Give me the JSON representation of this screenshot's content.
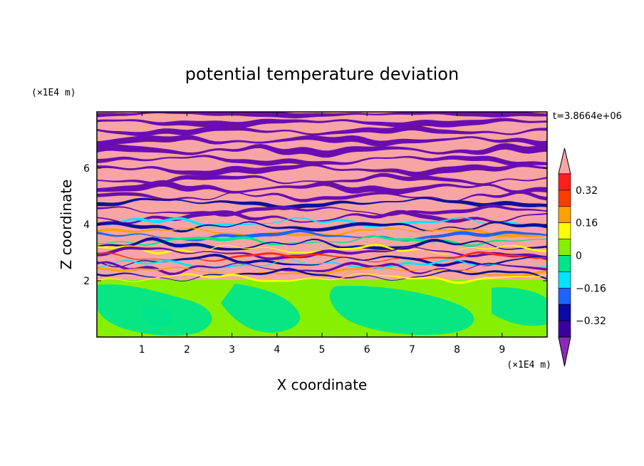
{
  "chart_data": {
    "type": "heatmap",
    "title": "potential temperature deviation",
    "xlabel": "X coordinate",
    "ylabel": "Z coordinate",
    "x_unit": "(×1E4 m)",
    "y_unit": "(×1E4 m)",
    "time_label": "t=3.8664e+06",
    "xlim": [
      0,
      10
    ],
    "ylim": [
      0,
      8
    ],
    "x_ticks": [
      1,
      2,
      3,
      4,
      5,
      6,
      7,
      8,
      9
    ],
    "y_ticks": [
      2,
      4,
      6
    ],
    "grid": false,
    "colorbar": {
      "placement": "right",
      "levels": [
        -0.4,
        -0.32,
        -0.24,
        -0.16,
        -0.08,
        0,
        0.08,
        0.16,
        0.24,
        0.32,
        0.4
      ],
      "colors": [
        "#8a2bb8",
        "#3a00a0",
        "#0a0aa8",
        "#1a64ff",
        "#00e5ff",
        "#00e58a",
        "#86f000",
        "#ffff00",
        "#ffa000",
        "#ff3c00",
        "#ff1e1e",
        "#f7a4a4"
      ],
      "tick_labels": [
        "0.32",
        "0.16",
        "0",
        "−0.16",
        "−0.32"
      ],
      "tick_values": [
        0.32,
        0.16,
        0,
        -0.16,
        -0.32
      ]
    }
  }
}
